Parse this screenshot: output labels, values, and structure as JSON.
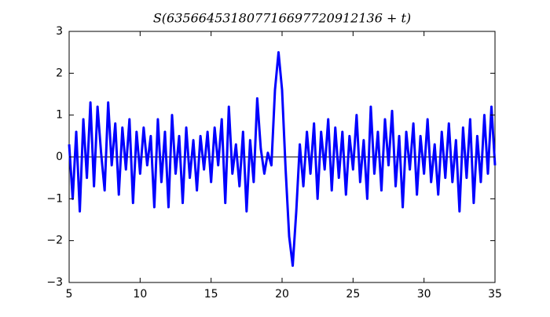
{
  "chart_data": {
    "type": "line",
    "title": "S(635664531807716697720912136 + t)",
    "x": [
      5,
      5.25,
      5.5,
      5.75,
      6,
      6.25,
      6.5,
      6.75,
      7,
      7.25,
      7.5,
      7.75,
      8,
      8.25,
      8.5,
      8.75,
      9,
      9.25,
      9.5,
      9.75,
      10,
      10.25,
      10.5,
      10.75,
      11,
      11.25,
      11.5,
      11.75,
      12,
      12.25,
      12.5,
      12.75,
      13,
      13.25,
      13.5,
      13.75,
      14,
      14.25,
      14.5,
      14.75,
      15,
      15.25,
      15.5,
      15.75,
      16,
      16.25,
      16.5,
      16.75,
      17,
      17.25,
      17.5,
      17.75,
      18,
      18.25,
      18.5,
      18.75,
      19,
      19.25,
      19.5,
      19.75,
      20,
      20.25,
      20.5,
      20.75,
      21,
      21.25,
      21.5,
      21.75,
      22,
      22.25,
      22.5,
      22.75,
      23,
      23.25,
      23.5,
      23.75,
      24,
      24.25,
      24.5,
      24.75,
      25,
      25.25,
      25.5,
      25.75,
      26,
      26.25,
      26.5,
      26.75,
      27,
      27.25,
      27.5,
      27.75,
      28,
      28.25,
      28.5,
      28.75,
      29,
      29.25,
      29.5,
      29.75,
      30,
      30.25,
      30.5,
      30.75,
      31,
      31.25,
      31.5,
      31.75,
      32,
      32.25,
      32.5,
      32.75,
      33,
      33.25,
      33.5,
      33.75,
      34,
      34.25,
      34.5,
      34.75,
      35
    ],
    "series": [
      {
        "color": "#0000ff",
        "values": [
          0.3,
          -1.0,
          0.6,
          -1.3,
          0.9,
          -0.5,
          1.3,
          -0.7,
          1.2,
          0.1,
          -0.8,
          1.3,
          -0.2,
          0.8,
          -0.9,
          0.7,
          -0.3,
          0.9,
          -1.1,
          0.6,
          -0.4,
          0.7,
          -0.2,
          0.5,
          -1.2,
          0.9,
          -0.6,
          0.6,
          -1.2,
          1.0,
          -0.4,
          0.5,
          -1.1,
          0.7,
          -0.5,
          0.4,
          -0.8,
          0.5,
          -0.3,
          0.6,
          -0.6,
          0.7,
          -0.2,
          0.9,
          -1.1,
          1.2,
          -0.4,
          0.3,
          -0.7,
          0.6,
          -1.3,
          0.4,
          -0.6,
          1.4,
          0.2,
          -0.4,
          0.1,
          -0.2,
          1.6,
          2.5,
          1.6,
          -0.3,
          -1.9,
          -2.6,
          -1.3,
          0.3,
          -0.7,
          0.6,
          -0.4,
          0.8,
          -1.0,
          0.6,
          -0.3,
          0.9,
          -0.8,
          0.7,
          -0.5,
          0.6,
          -0.9,
          0.5,
          -0.3,
          1.0,
          -0.6,
          0.4,
          -1.0,
          1.2,
          -0.4,
          0.6,
          -0.8,
          0.9,
          -0.2,
          1.1,
          -0.7,
          0.5,
          -1.2,
          0.6,
          -0.3,
          0.8,
          -0.9,
          0.5,
          -0.4,
          0.9,
          -0.6,
          0.3,
          -0.9,
          0.6,
          -0.5,
          0.8,
          -0.6,
          0.4,
          -1.3,
          0.7,
          -0.5,
          0.9,
          -1.1,
          0.5,
          -0.6,
          1.0,
          -0.4,
          1.2,
          -0.2
        ]
      }
    ],
    "hline": 0,
    "xlim": [
      5,
      35
    ],
    "xticks": [
      5,
      10,
      15,
      20,
      25,
      30,
      35
    ],
    "ylim": [
      -3,
      3
    ],
    "yticks": [
      {
        "value": -3,
        "label": "−3"
      },
      {
        "value": -2,
        "label": "−2"
      },
      {
        "value": -1,
        "label": "−1"
      },
      0,
      1,
      2,
      3
    ]
  }
}
